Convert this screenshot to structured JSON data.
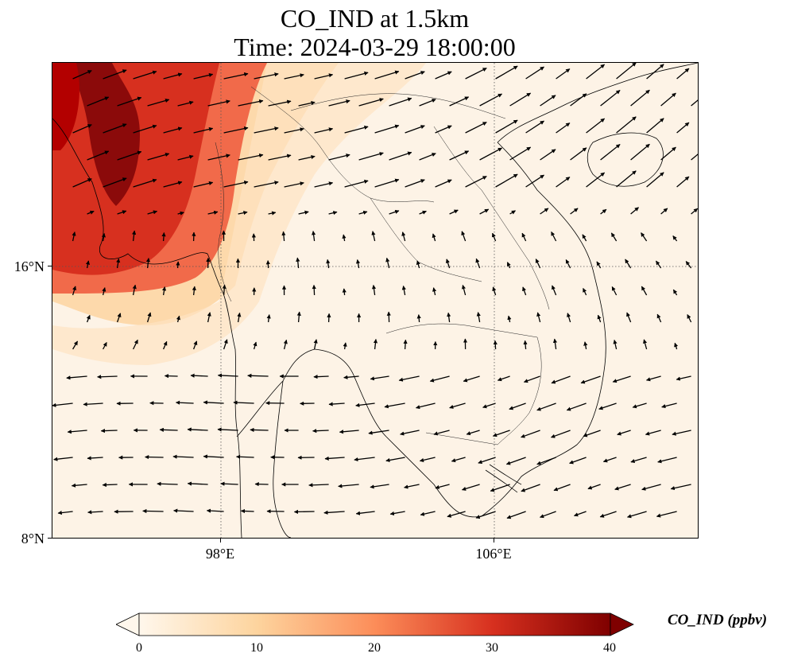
{
  "figure": {
    "title_line1": "CO_IND at 1.5km",
    "title_line2": "Time: 2024-03-29 18:00:00"
  },
  "map": {
    "variable": "CO_IND",
    "level": "1.5km",
    "time": "2024-03-29 18:00:00",
    "lat_ticks": [
      {
        "value": 16,
        "label": "16°N"
      },
      {
        "value": 8,
        "label": "8°N"
      }
    ],
    "lon_ticks": [
      {
        "value": 98,
        "label": "98°E"
      },
      {
        "value": 106,
        "label": "106°E"
      }
    ],
    "gridlines": true,
    "overlay": "wind vectors",
    "basemap": "coastlines and country borders",
    "colormap": "OrRd",
    "high_concentration_region": "northwest (Myanmar / Bay of Bengal)"
  },
  "colorbar": {
    "title": "CO_IND (ppbv)",
    "min": 0,
    "max": 40,
    "extend": "both",
    "ticks": [
      {
        "value": 0,
        "label": "0"
      },
      {
        "value": 10,
        "label": "10"
      },
      {
        "value": 20,
        "label": "20"
      },
      {
        "value": 30,
        "label": "30"
      },
      {
        "value": 40,
        "label": "40"
      }
    ],
    "colors": [
      "#fff7ec",
      "#fdd49e",
      "#fc8d59",
      "#d7301f",
      "#7f0000"
    ]
  }
}
